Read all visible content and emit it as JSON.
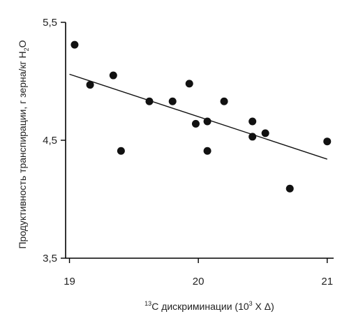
{
  "chart_data": {
    "type": "scatter",
    "xlabel_sup": "13",
    "xlabel_main": "C дискриминации (10",
    "xlabel_sup2": "3",
    "xlabel_end": " X Δ)",
    "ylabel_main": "Продуктивность транспирации, г зерна/кг H",
    "ylabel_sub": "2",
    "ylabel_end": "O",
    "xlim": [
      18.97,
      21.05
    ],
    "ylim": [
      3.5,
      5.5
    ],
    "x_ticks": [
      19,
      20,
      21
    ],
    "x_tick_labels": [
      "19",
      "20",
      "21"
    ],
    "y_ticks": [
      3.5,
      4.5,
      5.5
    ],
    "y_tick_labels": [
      "3,5",
      "4,5",
      "5,5"
    ],
    "grid": false,
    "points": [
      {
        "x": 19.04,
        "y": 5.31
      },
      {
        "x": 19.16,
        "y": 4.97
      },
      {
        "x": 19.34,
        "y": 5.05
      },
      {
        "x": 19.4,
        "y": 4.41
      },
      {
        "x": 19.62,
        "y": 4.83
      },
      {
        "x": 19.8,
        "y": 4.83
      },
      {
        "x": 19.93,
        "y": 4.98
      },
      {
        "x": 19.98,
        "y": 4.64
      },
      {
        "x": 20.07,
        "y": 4.66
      },
      {
        "x": 20.07,
        "y": 4.41
      },
      {
        "x": 20.2,
        "y": 4.83
      },
      {
        "x": 20.42,
        "y": 4.66
      },
      {
        "x": 20.42,
        "y": 4.53
      },
      {
        "x": 20.52,
        "y": 4.56
      },
      {
        "x": 20.71,
        "y": 4.09
      },
      {
        "x": 21.0,
        "y": 4.49
      }
    ],
    "trendline": {
      "x": [
        19.0,
        21.0
      ],
      "y": [
        5.06,
        4.34
      ]
    }
  }
}
